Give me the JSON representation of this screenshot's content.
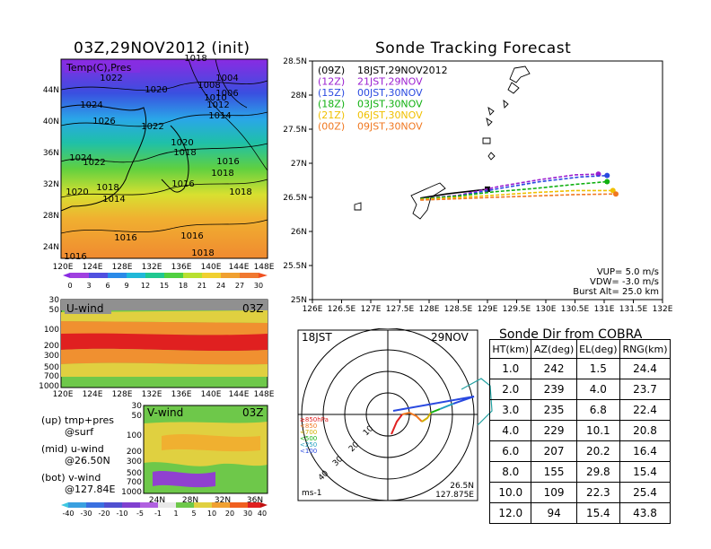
{
  "colors": {
    "black": "#000000",
    "track_09z": "#000000",
    "track_12z": "#9b1fd0",
    "track_15z": "#2a4ae0",
    "track_18z": "#10b010",
    "track_21z": "#f0c000",
    "track_00z": "#f07820"
  },
  "map_panel": {
    "title": "03Z,29NOV2012 (init)",
    "field_label": "Temp(C),Pres",
    "lon_ticks": [
      "120E",
      "124E",
      "128E",
      "132E",
      "136E",
      "140E",
      "144E",
      "148E"
    ],
    "lat_ticks": [
      "24N",
      "28N",
      "32N",
      "36N",
      "40N",
      "44N"
    ],
    "pressure_labels": [
      "1022",
      "1020",
      "1024",
      "1026",
      "1022",
      "1018",
      "1010",
      "1004",
      "1008",
      "1006",
      "1012",
      "1014",
      "1020",
      "1018",
      "1016",
      "1018",
      "1024",
      "1022",
      "1020",
      "1018",
      "1014",
      "1016",
      "1018",
      "1016",
      "1016",
      "1018",
      "1016"
    ],
    "colorbar_ticks": [
      "0",
      "3",
      "6",
      "9",
      "12",
      "15",
      "18",
      "21",
      "24",
      "27",
      "30"
    ]
  },
  "uwind_panel": {
    "label": "U-wind",
    "time": "03Z",
    "p_ticks": [
      "30",
      "50",
      "100",
      "200",
      "300",
      "500",
      "700",
      "1000"
    ],
    "lon_ticks": [
      "120E",
      "124E",
      "128E",
      "132E",
      "136E",
      "140E",
      "144E",
      "148E"
    ]
  },
  "vwind_panel": {
    "label": "V-wind",
    "time": "03Z",
    "p_ticks": [
      "30",
      "50",
      "100",
      "200",
      "300",
      "500",
      "700",
      "1000"
    ],
    "lat_ticks": [
      "24N",
      "28N",
      "32N",
      "36N"
    ],
    "colorbar_ticks": [
      "-40",
      "-30",
      "-20",
      "-10",
      "-5",
      "-1",
      "1",
      "5",
      "10",
      "20",
      "30",
      "40"
    ]
  },
  "notes": {
    "up": "(up) tmp+pres",
    "up2": "@surf",
    "mid": "(mid) u-wind",
    "mid2": "@26.50N",
    "bot": "(bot) v-wind",
    "bot2": "@127.84E"
  },
  "track_panel": {
    "title": "Sonde Tracking Forecast",
    "legend": [
      {
        "code": "(09Z)",
        "label": "18JST,29NOV2012"
      },
      {
        "code": "(12Z)",
        "label": "21JST,29NOV"
      },
      {
        "code": "(15Z)",
        "label": "00JST,30NOV"
      },
      {
        "code": "(18Z)",
        "label": "03JST,30NOV"
      },
      {
        "code": "(21Z)",
        "label": "06JST,30NOV"
      },
      {
        "code": "(00Z)",
        "label": "09JST,30NOV"
      }
    ],
    "vup": "VUP=  5.0  m/s",
    "vdw": "VDW= -3.0  m/s",
    "burst": "Burst Alt=  25.0  km"
  },
  "polar_panel": {
    "time_jst": "18JST",
    "date": "29NOV",
    "range_labels": [
      "10",
      "20",
      "30",
      "40"
    ],
    "level_labels": [
      "≥850hPa",
      "<850",
      "<700",
      "<500",
      "<250",
      "<100"
    ],
    "units": "ms-1",
    "lat": "26.5N",
    "lon": "127.875E"
  },
  "dir_table": {
    "title": "Sonde Dir from COBRA",
    "headers": [
      "HT(km)",
      "AZ(deg)",
      "EL(deg)",
      "RNG(km)"
    ],
    "rows": [
      [
        "1.0",
        "242",
        "1.5",
        "24.4"
      ],
      [
        "2.0",
        "239",
        "4.0",
        "23.7"
      ],
      [
        "3.0",
        "235",
        "6.8",
        "22.4"
      ],
      [
        "4.0",
        "229",
        "10.1",
        "20.8"
      ],
      [
        "6.0",
        "207",
        "20.2",
        "16.4"
      ],
      [
        "8.0",
        "155",
        "29.8",
        "15.4"
      ],
      [
        "10.0",
        "109",
        "22.3",
        "25.4"
      ],
      [
        "12.0",
        "94",
        "15.4",
        "43.8"
      ]
    ]
  },
  "chart_data": [
    {
      "type": "line",
      "title": "Sonde Tracking Forecast",
      "xlabel": "",
      "ylabel": "",
      "xlim": [
        126,
        132
      ],
      "ylim": [
        25,
        28.5
      ],
      "x_ticks": [
        "126E",
        "126.5E",
        "127E",
        "127.5E",
        "128E",
        "128.5E",
        "129E",
        "129.5E",
        "130E",
        "130.5E",
        "131E",
        "131.5E",
        "132E"
      ],
      "y_ticks": [
        "25N",
        "25.5N",
        "26N",
        "26.5N",
        "27N",
        "27.5N",
        "28N",
        "28.5N"
      ],
      "series": [
        {
          "name": "(09Z) 18JST,29NOV2012",
          "x": [
            127.85,
            128.3,
            128.8,
            129.0
          ],
          "y": [
            26.49,
            26.55,
            26.6,
            26.62
          ]
        },
        {
          "name": "(12Z) 21JST,29NOV",
          "x": [
            127.85,
            128.5,
            129.2,
            129.9,
            130.5,
            130.9
          ],
          "y": [
            26.48,
            26.53,
            26.66,
            26.76,
            26.83,
            26.84
          ]
        },
        {
          "name": "(15Z) 00JST,30NOV",
          "x": [
            127.85,
            128.5,
            129.2,
            129.9,
            130.6,
            131.05
          ],
          "y": [
            26.47,
            26.52,
            26.63,
            26.73,
            26.8,
            26.82
          ]
        },
        {
          "name": "(18Z) 03JST,30NOV",
          "x": [
            127.85,
            128.5,
            129.1,
            129.8,
            130.5,
            131.05
          ],
          "y": [
            26.48,
            26.52,
            26.58,
            26.63,
            26.69,
            26.73
          ]
        },
        {
          "name": "(21Z) 06JST,30NOV",
          "x": [
            127.85,
            128.5,
            129.1,
            129.8,
            130.5,
            131.15
          ],
          "y": [
            26.47,
            26.5,
            26.53,
            26.57,
            26.6,
            26.6
          ]
        },
        {
          "name": "(00Z) 09JST,30NOV",
          "x": [
            127.85,
            128.5,
            129.1,
            129.8,
            130.5,
            131.2
          ],
          "y": [
            26.46,
            26.48,
            26.5,
            26.52,
            26.54,
            26.55
          ]
        }
      ]
    },
    {
      "type": "table",
      "title": "Sonde Dir from COBRA",
      "columns": [
        "HT(km)",
        "AZ(deg)",
        "EL(deg)",
        "RNG(km)"
      ],
      "rows": [
        [
          1.0,
          242,
          1.5,
          24.4
        ],
        [
          2.0,
          239,
          4.0,
          23.7
        ],
        [
          3.0,
          235,
          6.8,
          22.4
        ],
        [
          4.0,
          229,
          10.1,
          20.8
        ],
        [
          6.0,
          207,
          20.2,
          16.4
        ],
        [
          8.0,
          155,
          29.8,
          15.4
        ],
        [
          10.0,
          109,
          22.3,
          25.4
        ],
        [
          12.0,
          94,
          15.4,
          43.8
        ]
      ]
    }
  ]
}
